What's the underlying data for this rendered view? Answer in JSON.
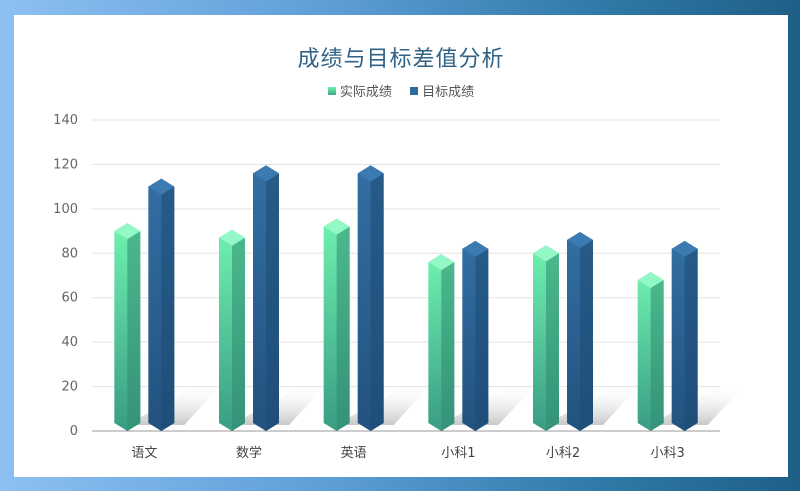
{
  "chart_data": {
    "type": "bar",
    "title": "成绩与目标差值分析",
    "categories": [
      "语文",
      "数学",
      "英语",
      "小科1",
      "小科2",
      "小科3"
    ],
    "series": [
      {
        "name": "实际成绩",
        "values": [
          90,
          87,
          92,
          76,
          80,
          68
        ]
      },
      {
        "name": "目标成绩",
        "values": [
          110,
          116,
          116,
          82,
          86,
          82
        ]
      }
    ],
    "ylim": [
      0,
      140
    ],
    "yticks": [
      0,
      20,
      40,
      60,
      80,
      100,
      120,
      140
    ],
    "grid": true,
    "legend_position": "top-center",
    "colors": {
      "actual_top": "#6ff2b0",
      "actual_bottom": "#3a9c84",
      "actual_side": "#2f8a70",
      "actual_cap": "#93f7c6",
      "target_top": "#336fa3",
      "target_bottom": "#22527f",
      "target_side": "#1d4a72",
      "target_cap": "#3c7bb2"
    }
  }
}
